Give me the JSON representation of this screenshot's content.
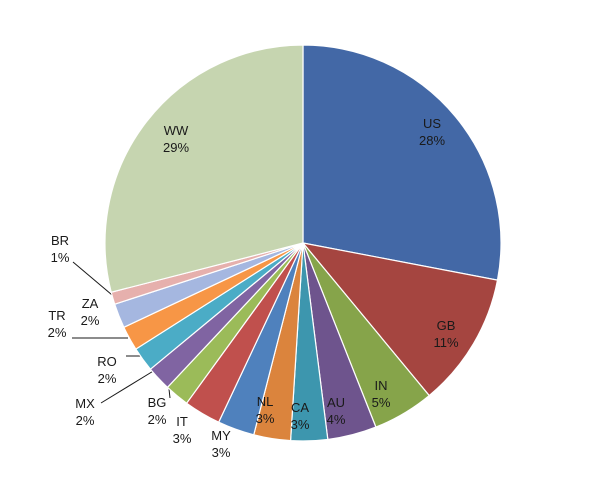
{
  "chart_data": {
    "type": "pie",
    "title": "",
    "slices": [
      {
        "label": "US",
        "value": 28,
        "value_label": "28%",
        "color": "#4368a6"
      },
      {
        "label": "GB",
        "value": 11,
        "value_label": "11%",
        "color": "#a54540"
      },
      {
        "label": "IN",
        "value": 5,
        "value_label": "5%",
        "color": "#86a44a"
      },
      {
        "label": "AU",
        "value": 4,
        "value_label": "4%",
        "color": "#6e548d"
      },
      {
        "label": "CA",
        "value": 3,
        "value_label": "3%",
        "color": "#3d96ae"
      },
      {
        "label": "NL",
        "value": 3,
        "value_label": "3%",
        "color": "#db843d"
      },
      {
        "label": "MY",
        "value": 3,
        "value_label": "3%",
        "color": "#4f81bd"
      },
      {
        "label": "IT",
        "value": 3,
        "value_label": "3%",
        "color": "#c0504d"
      },
      {
        "label": "BG",
        "value": 2,
        "value_label": "2%",
        "color": "#9bbb59"
      },
      {
        "label": "MX",
        "value": 2,
        "value_label": "2%",
        "color": "#8064a2"
      },
      {
        "label": "RO",
        "value": 2,
        "value_label": "2%",
        "color": "#4bacc6"
      },
      {
        "label": "TR",
        "value": 2,
        "value_label": "2%",
        "color": "#f79646"
      },
      {
        "label": "ZA",
        "value": 2,
        "value_label": "2%",
        "color": "#a5b7e0"
      },
      {
        "label": "BR",
        "value": 1,
        "value_label": "1%",
        "color": "#e6b0ad"
      },
      {
        "label": "WW",
        "value": 29,
        "value_label": "29%",
        "color": "#c6d5b0"
      }
    ]
  }
}
